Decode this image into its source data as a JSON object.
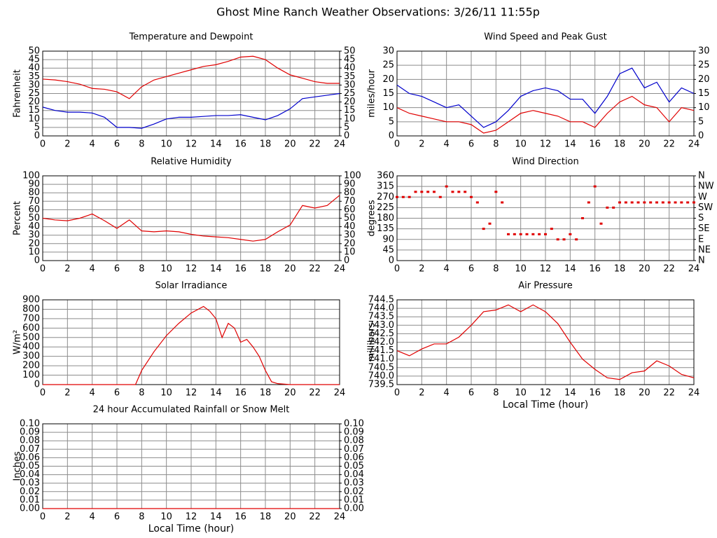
{
  "page_title": "Ghost Mine Ranch Weather Observations: 3/26/11 11:55p",
  "chart_data": [
    {
      "type": "line",
      "title": "Temperature and Dewpoint",
      "y_label": "Fahrenheit",
      "grid": true,
      "x": [
        0,
        1,
        2,
        3,
        4,
        5,
        6,
        7,
        8,
        9,
        10,
        11,
        12,
        13,
        14,
        15,
        16,
        17,
        18,
        19,
        20,
        21,
        22,
        23,
        24
      ],
      "series": [
        {
          "color": "#e00000",
          "values": [
            33.5,
            33,
            32,
            30.5,
            28,
            27.5,
            26,
            22,
            29,
            33,
            35,
            37,
            39,
            41,
            42,
            44,
            46.5,
            47,
            45,
            40,
            36,
            34,
            32,
            31,
            31
          ]
        },
        {
          "color": "#0000cc",
          "values": [
            17,
            15,
            14,
            14,
            13.5,
            11,
            5,
            5,
            4.5,
            7,
            10,
            11,
            11,
            11.5,
            12,
            12,
            12.5,
            11,
            9.5,
            12,
            16,
            22,
            23,
            24,
            25
          ]
        }
      ],
      "xlim": [
        0,
        24
      ],
      "xticks": [
        0,
        2,
        4,
        6,
        8,
        10,
        12,
        14,
        16,
        18,
        20,
        22,
        24
      ],
      "ylim": [
        0,
        50
      ],
      "yticks": [
        0,
        5,
        10,
        15,
        20,
        25,
        30,
        35,
        40,
        45,
        50
      ],
      "y2lim": [
        0,
        50
      ],
      "y2ticks": [
        0,
        5,
        10,
        15,
        20,
        25,
        30,
        35,
        40,
        45,
        50
      ]
    },
    {
      "type": "line",
      "title": "Wind Speed and Peak Gust",
      "y_label": "miles/hour",
      "grid": true,
      "x": [
        0,
        1,
        2,
        3,
        4,
        5,
        6,
        7,
        8,
        9,
        10,
        11,
        12,
        13,
        14,
        15,
        16,
        17,
        18,
        19,
        20,
        21,
        22,
        23,
        24
      ],
      "series": [
        {
          "color": "#0000cc",
          "values": [
            18,
            15,
            14,
            12,
            10,
            11,
            7,
            3,
            5,
            9,
            14,
            16,
            17,
            16,
            13,
            13,
            8,
            14,
            22,
            24,
            17,
            19,
            12,
            17,
            15
          ]
        },
        {
          "color": "#e00000",
          "values": [
            10,
            8,
            7,
            6,
            5,
            5,
            4,
            1,
            2,
            5,
            8,
            9,
            8,
            7,
            5,
            5,
            3,
            8,
            12,
            14,
            11,
            10,
            5,
            10,
            9
          ]
        }
      ],
      "xlim": [
        0,
        24
      ],
      "xticks": [
        0,
        2,
        4,
        6,
        8,
        10,
        12,
        14,
        16,
        18,
        20,
        22,
        24
      ],
      "ylim": [
        0,
        30
      ],
      "yticks": [
        0,
        5,
        10,
        15,
        20,
        25,
        30
      ],
      "y2lim": [
        0,
        30
      ],
      "y2ticks": [
        0,
        5,
        10,
        15,
        20,
        25,
        30
      ]
    },
    {
      "type": "line",
      "title": "Relative Humidity",
      "y_label": "Percent",
      "grid": true,
      "x": [
        0,
        1,
        2,
        3,
        4,
        5,
        6,
        7,
        8,
        9,
        10,
        11,
        12,
        13,
        14,
        15,
        16,
        17,
        18,
        19,
        20,
        21,
        22,
        23,
        24
      ],
      "series": [
        {
          "color": "#e00000",
          "values": [
            50,
            48,
            47,
            50,
            55,
            47,
            38,
            48,
            35,
            34,
            35,
            34,
            31,
            29,
            28,
            27,
            25,
            23,
            25,
            34,
            42,
            65,
            62,
            65,
            77
          ]
        }
      ],
      "xlim": [
        0,
        24
      ],
      "xticks": [
        0,
        2,
        4,
        6,
        8,
        10,
        12,
        14,
        16,
        18,
        20,
        22,
        24
      ],
      "ylim": [
        0,
        100
      ],
      "yticks": [
        0,
        10,
        20,
        30,
        40,
        50,
        60,
        70,
        80,
        90,
        100
      ],
      "y2lim": [
        0,
        100
      ],
      "y2ticks": [
        0,
        10,
        20,
        30,
        40,
        50,
        60,
        70,
        80,
        90,
        100
      ]
    },
    {
      "type": "scatter",
      "title": "Wind Direction",
      "y_label": "degrees",
      "grid": true,
      "x": [
        0,
        0.5,
        1,
        1.5,
        2,
        2.5,
        3,
        3.5,
        4,
        4.5,
        5,
        5.5,
        6,
        6.5,
        7,
        7.5,
        8,
        8.5,
        9,
        9.5,
        10,
        10.5,
        11,
        11.5,
        12,
        12.5,
        13,
        13.5,
        14,
        14.5,
        15,
        15.5,
        16,
        16.5,
        17,
        17.5,
        18,
        18.5,
        19,
        19.5,
        20,
        20.5,
        21,
        21.5,
        22,
        22.5,
        23,
        23.5,
        24
      ],
      "series": [
        {
          "color": "#e00000",
          "values": [
            270,
            270,
            270,
            292,
            292,
            292,
            292,
            270,
            315,
            292,
            292,
            292,
            270,
            247,
            135,
            157,
            292,
            247,
            112,
            112,
            112,
            112,
            112,
            112,
            112,
            135,
            90,
            90,
            112,
            90,
            180,
            247,
            315,
            157,
            225,
            225,
            247,
            247,
            247,
            247,
            247,
            247,
            247,
            247,
            247,
            247,
            247,
            247,
            247
          ]
        }
      ],
      "xlim": [
        0,
        24
      ],
      "xticks": [
        0,
        2,
        4,
        6,
        8,
        10,
        12,
        14,
        16,
        18,
        20,
        22,
        24
      ],
      "ylim": [
        0,
        360
      ],
      "yticks": [
        0,
        45,
        90,
        135,
        180,
        225,
        270,
        315,
        360
      ],
      "y2lim": [
        0,
        360
      ],
      "y2ticks": [
        {
          "value": 0,
          "label": "N"
        },
        {
          "value": 45,
          "label": "NE"
        },
        {
          "value": 90,
          "label": "E"
        },
        {
          "value": 135,
          "label": "SE"
        },
        {
          "value": 180,
          "label": "S"
        },
        {
          "value": 225,
          "label": "SW"
        },
        {
          "value": 270,
          "label": "W"
        },
        {
          "value": 315,
          "label": "NW"
        },
        {
          "value": 360,
          "label": "N"
        }
      ]
    },
    {
      "type": "line",
      "title": "Solar Irradiance",
      "y_label": "W/m²",
      "grid": true,
      "x": [
        0,
        2,
        4,
        6,
        7,
        7.5,
        8,
        9,
        10,
        11,
        12,
        13,
        13.5,
        14,
        14.5,
        15,
        15.5,
        16,
        16.5,
        17,
        17.5,
        18,
        18.5,
        19,
        20,
        22,
        24
      ],
      "series": [
        {
          "color": "#e00000",
          "values": [
            0,
            0,
            0,
            0,
            0,
            0,
            150,
            350,
            520,
            650,
            760,
            830,
            780,
            700,
            500,
            650,
            600,
            450,
            480,
            400,
            300,
            150,
            30,
            10,
            0,
            0,
            0
          ]
        }
      ],
      "xlim": [
        0,
        24
      ],
      "xticks": [
        0,
        2,
        4,
        6,
        8,
        10,
        12,
        14,
        16,
        18,
        20,
        22,
        24
      ],
      "ylim": [
        0,
        900
      ],
      "yticks": [
        0,
        100,
        200,
        300,
        400,
        500,
        600,
        700,
        800,
        900
      ]
    },
    {
      "type": "line",
      "title": "Air Pressure",
      "y_label": "millibars",
      "x_label": "Local Time (hour)",
      "grid": true,
      "x": [
        0,
        1,
        2,
        3,
        4,
        5,
        6,
        7,
        8,
        9,
        10,
        11,
        12,
        13,
        14,
        15,
        16,
        17,
        18,
        19,
        20,
        21,
        22,
        23,
        24
      ],
      "series": [
        {
          "color": "#e00000",
          "values": [
            741.5,
            741.2,
            741.6,
            741.9,
            741.9,
            742.3,
            743.0,
            743.8,
            743.9,
            744.2,
            743.8,
            744.2,
            743.8,
            743.1,
            742.0,
            741.0,
            740.4,
            739.9,
            739.8,
            740.2,
            740.3,
            740.9,
            740.6,
            740.1,
            739.9
          ]
        }
      ],
      "xlim": [
        0,
        24
      ],
      "xticks": [
        0,
        2,
        4,
        6,
        8,
        10,
        12,
        14,
        16,
        18,
        20,
        22,
        24
      ],
      "ylim": [
        739.5,
        744.5
      ],
      "yticks": [
        739.5,
        {
          "value": 740,
          "label": "740.0"
        },
        740.5,
        {
          "value": 741,
          "label": "741.0"
        },
        741.5,
        {
          "value": 742,
          "label": "742.0"
        },
        742.5,
        {
          "value": 743,
          "label": "743.0"
        },
        743.5,
        {
          "value": 744,
          "label": "744.0"
        },
        744.5
      ]
    },
    {
      "type": "line",
      "title": "24 hour Accumulated Rainfall or Snow Melt",
      "y_label": "Inches",
      "x_label": "Local Time (hour)",
      "grid": true,
      "x": [
        0,
        24
      ],
      "series": [
        {
          "color": "#e00000",
          "values": [
            0,
            0
          ]
        }
      ],
      "xlim": [
        0,
        24
      ],
      "xticks": [
        0,
        2,
        4,
        6,
        8,
        10,
        12,
        14,
        16,
        18,
        20,
        22,
        24
      ],
      "ylim": [
        0,
        0.1
      ],
      "yticks": [
        {
          "value": 0,
          "label": "0.00"
        },
        {
          "value": 0.01,
          "label": "0.01"
        },
        {
          "value": 0.02,
          "label": "0.02"
        },
        {
          "value": 0.03,
          "label": "0.03"
        },
        {
          "value": 0.04,
          "label": "0.04"
        },
        {
          "value": 0.05,
          "label": "0.05"
        },
        {
          "value": 0.06,
          "label": "0.06"
        },
        {
          "value": 0.07,
          "label": "0.07"
        },
        {
          "value": 0.08,
          "label": "0.08"
        },
        {
          "value": 0.09,
          "label": "0.09"
        },
        {
          "value": 0.1,
          "label": "0.10"
        }
      ],
      "y2lim": [
        0,
        0.1
      ],
      "y2ticks": [
        {
          "value": 0,
          "label": "0.00"
        },
        {
          "value": 0.01,
          "label": "0.01"
        },
        {
          "value": 0.02,
          "label": "0.02"
        },
        {
          "value": 0.03,
          "label": "0.03"
        },
        {
          "value": 0.04,
          "label": "0.04"
        },
        {
          "value": 0.05,
          "label": "0.05"
        },
        {
          "value": 0.06,
          "label": "0.06"
        },
        {
          "value": 0.07,
          "label": "0.07"
        },
        {
          "value": 0.08,
          "label": "0.08"
        },
        {
          "value": 0.09,
          "label": "0.09"
        },
        {
          "value": 0.1,
          "label": "0.10"
        }
      ]
    }
  ]
}
